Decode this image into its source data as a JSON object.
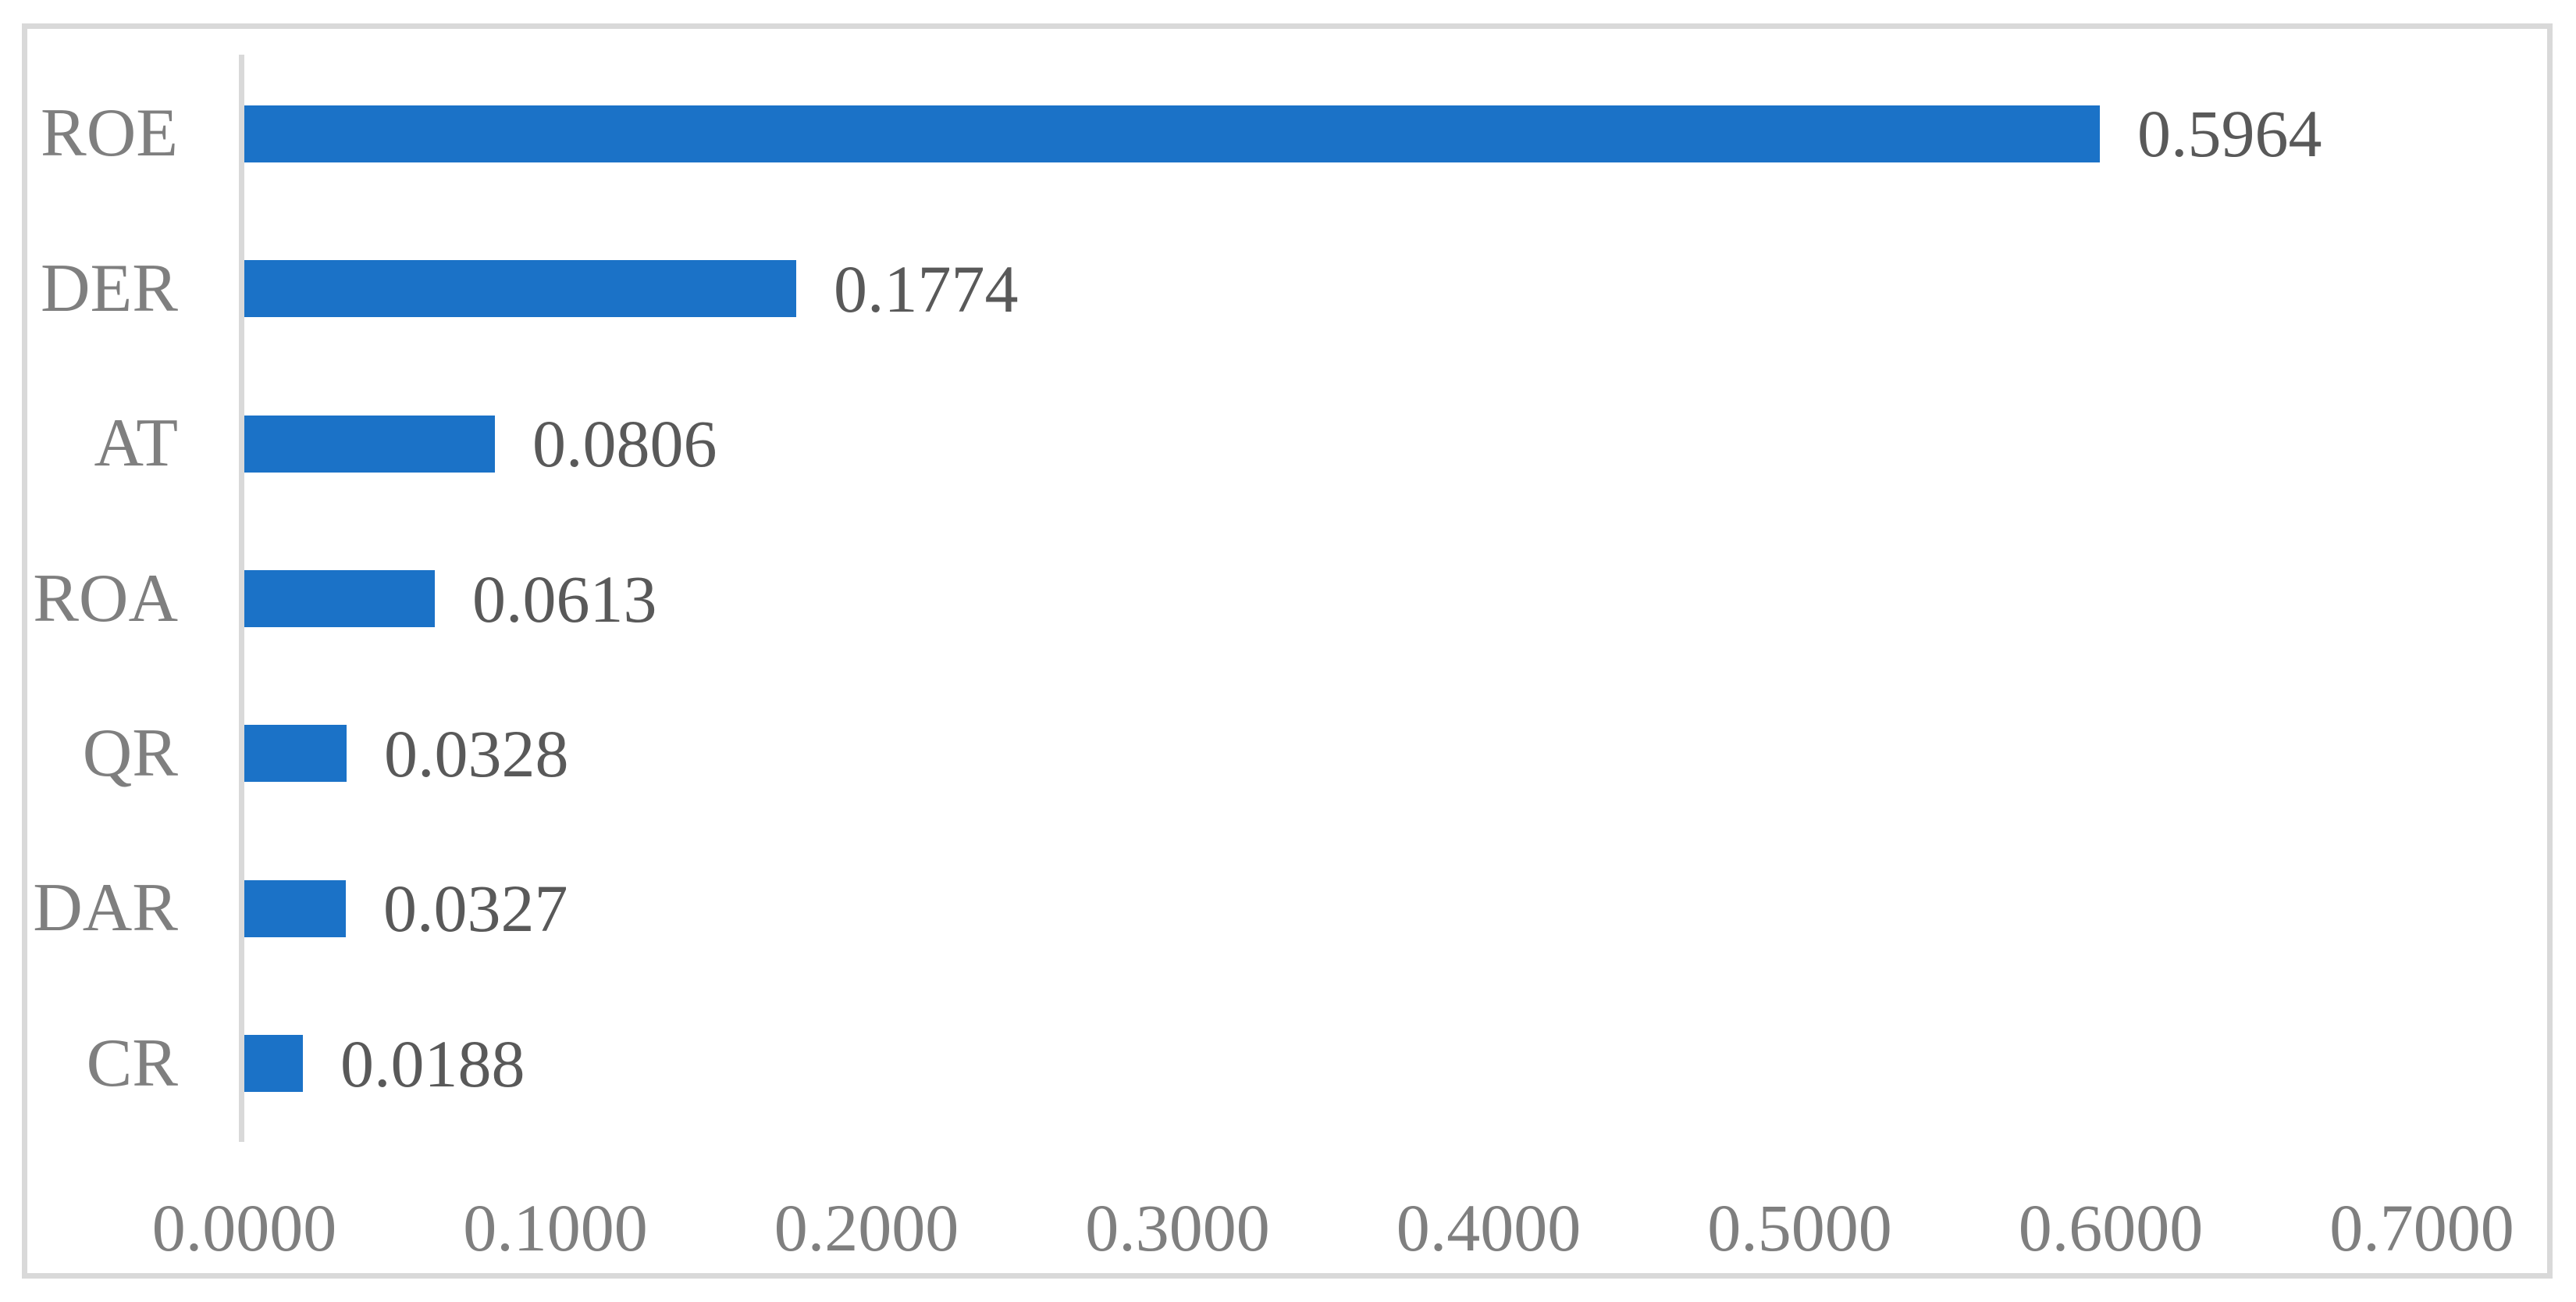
{
  "chart_data": {
    "type": "bar",
    "orientation": "horizontal",
    "title": "",
    "categories": [
      "ROE",
      "DER",
      "AT",
      "ROA",
      "QR",
      "DAR",
      "CR"
    ],
    "values": [
      0.5964,
      0.1774,
      0.0806,
      0.0613,
      0.0328,
      0.0327,
      0.0188
    ],
    "value_labels": [
      "0.5964",
      "0.1774",
      "0.0806",
      "0.0613",
      "0.0328",
      "0.0327",
      "0.0188"
    ],
    "x_tick_labels": [
      "0.0000",
      "0.1000",
      "0.2000",
      "0.3000",
      "0.4000",
      "0.5000",
      "0.6000",
      "0.7000"
    ],
    "x_tick_values": [
      0.0,
      0.1,
      0.2,
      0.3,
      0.4,
      0.5,
      0.6,
      0.7
    ],
    "xlim": [
      0.0,
      0.7
    ],
    "grid": false,
    "legend": false,
    "data_labels_position": "outside-end",
    "colors": {
      "bar": "#1B72C7",
      "category_label": "#7F7F7F",
      "value_label": "#595959",
      "tick_label": "#7F7F7F",
      "axis_line": "#D9D9D9",
      "frame_border": "#D9D9D9",
      "background": "#FFFFFF"
    }
  }
}
